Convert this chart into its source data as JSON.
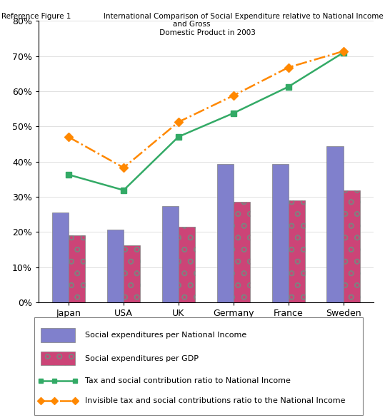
{
  "categories": [
    "Japan",
    "USA",
    "UK",
    "Germany",
    "France",
    "Sweden"
  ],
  "bar1_values": [
    0.256,
    0.206,
    0.274,
    0.393,
    0.394,
    0.444
  ],
  "bar2_values": [
    0.19,
    0.163,
    0.215,
    0.286,
    0.291,
    0.318
  ],
  "line1_values": [
    0.363,
    0.319,
    0.471,
    0.538,
    0.613,
    0.71
  ],
  "line2_values": [
    0.47,
    0.383,
    0.513,
    0.588,
    0.668,
    0.714
  ],
  "bar1_color": "#8080cc",
  "bar2_color": "#cc4477",
  "bar2_hatch_color": "#ffffff",
  "line1_color": "#33aa66",
  "line2_color": "#ff8800",
  "title": "Reference Figure 1              International Comparison of Social Expenditure relative to National Income and Gross \n             Domestic Product in 2003",
  "legend_labels": [
    "Social expenditures per National Income",
    "Social expenditures per GDP",
    "Tax and social contribution ratio to National Income",
    "Invisible tax and social contributions ratio to the National Income"
  ],
  "ylim": [
    0.0,
    0.8
  ],
  "yticks": [
    0.0,
    0.1,
    0.2,
    0.3,
    0.4,
    0.5,
    0.6,
    0.7,
    0.8
  ],
  "ytick_labels": [
    "0%",
    "10%",
    "20%",
    "30%",
    "40%",
    "50%",
    "60%",
    "70%",
    "80%"
  ],
  "bar_width": 0.3,
  "fig_width": 5.39,
  "fig_height": 5.89,
  "dpi": 100
}
